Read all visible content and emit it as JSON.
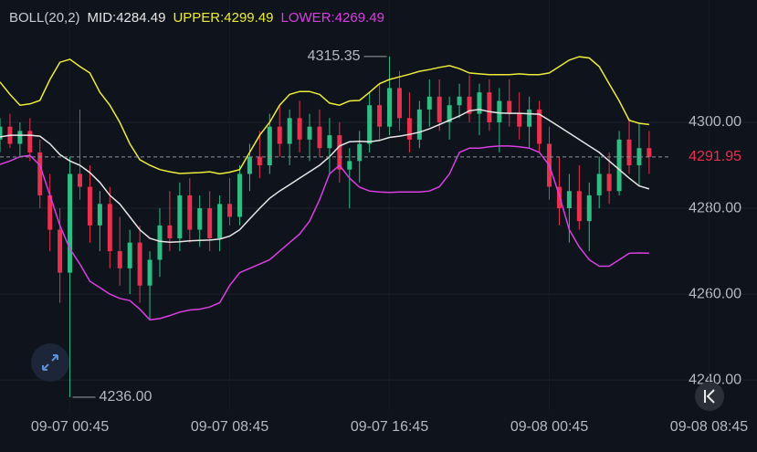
{
  "chart_data": {
    "type": "candlestick",
    "indicator": "BOLL(20,2)",
    "categories": [
      null,
      null,
      null,
      null,
      null,
      null,
      null,
      "09-07 00:45",
      null,
      null,
      null,
      null,
      null,
      null,
      null,
      null,
      null,
      null,
      null,
      null,
      null,
      null,
      null,
      "09-07 08:45",
      null,
      null,
      null,
      null,
      null,
      null,
      null,
      null,
      null,
      null,
      null,
      null,
      null,
      null,
      null,
      "09-07 16:45",
      null,
      null,
      null,
      null,
      null,
      null,
      null,
      null,
      null,
      null,
      null,
      null,
      null,
      null,
      null,
      "09-08 00:45",
      null,
      null,
      null,
      null,
      null,
      null,
      null,
      null,
      null,
      null,
      null,
      null,
      null,
      null,
      null,
      "09-08 08:45"
    ],
    "open": [
      4296,
      4299,
      4295,
      4298,
      4293,
      4283,
      4275,
      4265,
      4288,
      4285,
      4276,
      4281,
      4270,
      4266,
      4272,
      4262,
      4268,
      4276,
      4273,
      4283,
      4275,
      4280,
      4273,
      4281,
      4278,
      4288,
      4292,
      4290,
      4299,
      4295,
      4301,
      4296,
      4299,
      4294,
      4297,
      4289,
      4291,
      4295,
      4304,
      4299,
      4308,
      4301,
      4296,
      4303,
      4306,
      4300,
      4304,
      4306,
      4302,
      4307,
      4300,
      4305,
      4302,
      4299,
      4303,
      4295,
      4285,
      4280,
      4284,
      4277,
      4283,
      4288,
      4284,
      4296,
      4290,
      4294,
      null,
      null,
      null,
      null,
      null,
      null
    ],
    "high": [
      4301,
      4302,
      4300,
      4301,
      4296,
      4288,
      4280,
      4292,
      4303,
      4290,
      4284,
      4285,
      4278,
      4275,
      4276,
      4270,
      4280,
      4284,
      4286,
      4287,
      4283,
      4284,
      4283,
      4287,
      4290,
      4295,
      4298,
      4302,
      4304,
      4303,
      4305,
      4302,
      4303,
      4301,
      4300,
      4294,
      4298,
      4307,
      4309,
      4315.35,
      4312,
      4307,
      4305,
      4310,
      4310,
      4306,
      4309,
      4311,
      4309,
      4310,
      4308,
      4310,
      4307,
      4306,
      4305,
      4299,
      4292,
      4288,
      4290,
      4286,
      4292,
      4293,
      4298,
      4301,
      4300,
      4298,
      null,
      null,
      null,
      null,
      null,
      null
    ],
    "low": [
      4293,
      4294,
      4292,
      4291,
      4280,
      4270,
      4258,
      4236,
      4282,
      4272,
      4270,
      4266,
      4262,
      4260,
      4258,
      4254,
      4264,
      4270,
      4270,
      4272,
      4271,
      4270,
      4270,
      4276,
      4276,
      4284,
      4287,
      4288,
      4292,
      4290,
      4293,
      4291,
      4292,
      4288,
      4286,
      4280,
      4286,
      4293,
      4296,
      4297,
      4298,
      4293,
      4294,
      4299,
      4298,
      4296,
      4301,
      4300,
      4297,
      4298,
      4293,
      4299,
      4296,
      4294,
      4293,
      4282,
      4276,
      4272,
      4275,
      4270,
      4280,
      4281,
      4283,
      4288,
      4285,
      4288,
      null,
      null,
      null,
      null,
      null,
      null
    ],
    "close": [
      4299,
      4295,
      4298,
      4293,
      4283,
      4275,
      4265,
      4288,
      4285,
      4276,
      4281,
      4270,
      4266,
      4272,
      4262,
      4268,
      4276,
      4273,
      4283,
      4275,
      4280,
      4273,
      4281,
      4278,
      4288,
      4292,
      4290,
      4299,
      4295,
      4301,
      4296,
      4299,
      4294,
      4297,
      4289,
      4291,
      4295,
      4304,
      4299,
      4308,
      4301,
      4296,
      4303,
      4306,
      4300,
      4304,
      4306,
      4302,
      4307,
      4300,
      4305,
      4302,
      4299,
      4303,
      4295,
      4285,
      4280,
      4284,
      4277,
      4283,
      4288,
      4284,
      4296,
      4290,
      4294,
      4291.95,
      null,
      null,
      null,
      null,
      null,
      null
    ],
    "up_color": "#2ebd85",
    "down_color": "#e8304f",
    "series": [
      {
        "name": "MID:4284.49",
        "color": "#e6e6e6",
        "values": [
          4296.6,
          4297,
          4297,
          4297,
          4296.8,
          4295,
          4292.5,
          4291,
          4290,
          4288.3,
          4286,
          4283,
          4281,
          4278,
          4275,
          4273,
          4272.3,
          4272.1,
          4272.2,
          4272.4,
          4272.5,
          4272.6,
          4272.8,
          4273.5,
          4275,
          4277.5,
          4280,
          4282.3,
          4284,
          4285.5,
          4287,
          4288.5,
          4290,
          4292,
          4294.5,
          4295.5,
          4295.6,
          4295.5,
          4295.8,
          4296.5,
          4296.8,
          4297.2,
          4297.7,
          4298.5,
          4299.5,
          4300.5,
          4301.5,
          4302.7,
          4303,
          4302.5,
          4302.2,
          4302.1,
          4302.1,
          4302,
          4301.9,
          4300.5,
          4299,
          4297.5,
          4296,
          4294.5,
          4293,
          4291,
          4289,
          4287,
          4285.2,
          4284.5,
          null,
          null,
          null,
          null,
          null,
          null
        ]
      },
      {
        "name": "UPPER:4299.49",
        "color": "#ecec3c",
        "values": [
          4309.4,
          4306.5,
          4304,
          4304.3,
          4305.1,
          4310,
          4314,
          4314.7,
          4313,
          4311.5,
          4307,
          4304,
          4300,
          4295,
          4291.3,
          4290,
          4289,
          4288.5,
          4288.1,
          4288.2,
          4288.3,
          4288.5,
          4288,
          4288.4,
          4289,
          4293,
          4297,
          4300,
          4304,
          4306.5,
          4307.2,
          4307.2,
          4306.5,
          4304.5,
          4304,
          4305,
          4305.1,
          4307,
          4309,
          4310,
          4310.6,
          4311.2,
          4311.9,
          4312.3,
          4312.8,
          4313.2,
          4312.5,
          4311.5,
          4311.3,
          4311.1,
          4311.1,
          4311.1,
          4311.3,
          4311.1,
          4311.1,
          4311.5,
          4313,
          4314.5,
          4315.3,
          4315,
          4313,
          4309,
          4305,
          4300.5,
          4299.8,
          4299.5,
          null,
          null,
          null,
          null,
          null,
          null
        ]
      },
      {
        "name": "LOWER:4269.49",
        "color": "#d93fe2",
        "values": [
          4290.2,
          4291,
          4292,
          4292.3,
          4290,
          4283,
          4276,
          4270.5,
          4267,
          4263,
          4261.5,
          4260,
          4259,
          4258.5,
          4256.5,
          4254,
          4254.3,
          4255,
          4255.8,
          4256.3,
          4256.5,
          4257,
          4258,
          4262,
          4265,
          4266,
          4267,
          4268,
          4270,
          4272,
          4274,
          4277,
          4282,
          4288,
          4290,
          4287,
          4284.9,
          4284,
          4283.8,
          4283.7,
          4283.8,
          4283.8,
          4283.8,
          4284,
          4285,
          4288,
          4293,
          4294,
          4294,
          4294.3,
          4294.5,
          4294.5,
          4294.3,
          4294,
          4293,
          4290,
          4283,
          4275,
          4271,
          4268,
          4266.5,
          4266.5,
          4268,
          4269.5,
          4269.6,
          4269.5,
          null,
          null,
          null,
          null,
          null,
          null
        ]
      }
    ],
    "ylim": [
      4232.8,
      4328.5
    ],
    "yticks": [
      {
        "value": 4240,
        "label": "4240.00"
      },
      {
        "value": 4260,
        "label": "4260.00"
      },
      {
        "value": 4280,
        "label": "4280.00"
      },
      {
        "value": 4300,
        "label": "4300.00"
      }
    ],
    "grid": true,
    "high_label": "4315.35",
    "low_label": "4236.00",
    "last_price_label": "4291.95",
    "last_price_color": "#e8304f"
  }
}
